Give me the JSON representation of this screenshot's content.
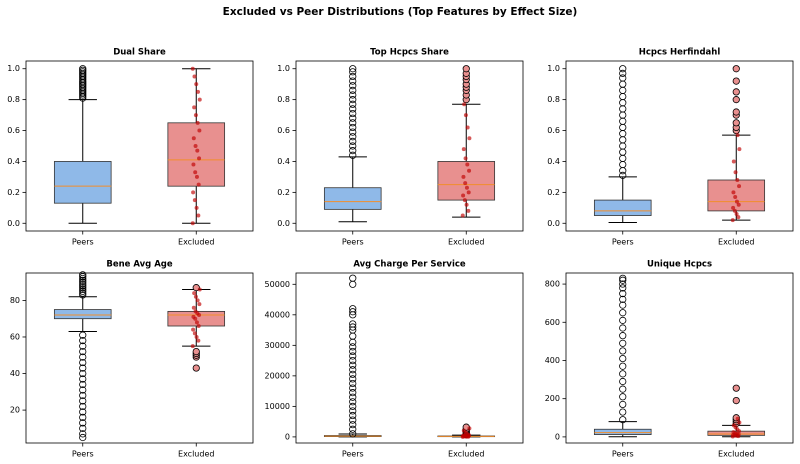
{
  "title": "Excluded vs Peer Distributions (Top Features by Effect Size)",
  "chart_data": [
    {
      "type": "box",
      "title": "Dual Share",
      "ylim": [
        -0.05,
        1.05
      ],
      "yticks": [
        {
          "value": 0,
          "label": "0.0"
        },
        {
          "value": 0.2,
          "label": "0.2"
        },
        {
          "value": 0.4,
          "label": "0.4"
        },
        {
          "value": 0.6,
          "label": "0.6"
        },
        {
          "value": 0.8,
          "label": "0.8"
        },
        {
          "value": 1,
          "label": "1.0"
        }
      ],
      "median_color": "#f28e2b",
      "boxes": [
        {
          "name": "Peers",
          "color": "#8fb9e8",
          "whislo": 0,
          "q1": 0.13,
          "med": 0.24,
          "q3": 0.4,
          "whishi": 0.8,
          "fliers": [
            0.81,
            0.82,
            0.83,
            0.84,
            0.85,
            0.86,
            0.87,
            0.88,
            0.89,
            0.9,
            0.91,
            0.92,
            0.93,
            0.94,
            0.95,
            0.96,
            0.97,
            0.98,
            0.99,
            1.0
          ]
        },
        {
          "name": "Excluded",
          "color": "#e8908f",
          "whislo": 0,
          "q1": 0.24,
          "med": 0.41,
          "q3": 0.65,
          "whishi": 1.0,
          "fliers": [],
          "points": [
            0.0,
            0.05,
            0.1,
            0.15,
            0.2,
            0.25,
            0.3,
            0.33,
            0.38,
            0.42,
            0.47,
            0.5,
            0.55,
            0.6,
            0.65,
            0.7,
            0.75,
            0.8,
            0.85,
            0.9,
            0.95,
            1.0
          ],
          "points_color": "#c00000"
        }
      ]
    },
    {
      "type": "box",
      "title": "Top Hcpcs Share",
      "ylim": [
        -0.05,
        1.05
      ],
      "yticks": [
        {
          "value": 0,
          "label": "0.0"
        },
        {
          "value": 0.2,
          "label": "0.2"
        },
        {
          "value": 0.4,
          "label": "0.4"
        },
        {
          "value": 0.6,
          "label": "0.6"
        },
        {
          "value": 0.8,
          "label": "0.8"
        },
        {
          "value": 1,
          "label": "1.0"
        }
      ],
      "median_color": "#f28e2b",
      "boxes": [
        {
          "name": "Peers",
          "color": "#8fb9e8",
          "whislo": 0.01,
          "q1": 0.09,
          "med": 0.14,
          "q3": 0.23,
          "whishi": 0.43,
          "fliers": [
            0.44,
            0.47,
            0.5,
            0.53,
            0.56,
            0.59,
            0.62,
            0.65,
            0.68,
            0.71,
            0.74,
            0.77,
            0.8,
            0.83,
            0.86,
            0.89,
            0.92,
            0.95,
            0.98,
            1.0
          ]
        },
        {
          "name": "Excluded",
          "color": "#e8908f",
          "whislo": 0.04,
          "q1": 0.15,
          "med": 0.25,
          "q3": 0.4,
          "whishi": 0.77,
          "fliers": [
            0.8,
            0.83,
            0.86,
            0.88,
            0.9,
            0.93,
            0.95,
            0.97,
            1.0
          ],
          "points": [
            0.05,
            0.08,
            0.12,
            0.15,
            0.18,
            0.2,
            0.23,
            0.26,
            0.3,
            0.34,
            0.38,
            0.42,
            0.48,
            0.55,
            0.62,
            0.7,
            0.77
          ],
          "points_color": "#c00000"
        }
      ]
    },
    {
      "type": "box",
      "title": "Hcpcs Herfindahl",
      "ylim": [
        -0.05,
        1.05
      ],
      "yticks": [
        {
          "value": 0,
          "label": "0.0"
        },
        {
          "value": 0.2,
          "label": "0.2"
        },
        {
          "value": 0.4,
          "label": "0.4"
        },
        {
          "value": 0.6,
          "label": "0.6"
        },
        {
          "value": 0.8,
          "label": "0.8"
        },
        {
          "value": 1,
          "label": "1.0"
        }
      ],
      "median_color": "#f28e2b",
      "boxes": [
        {
          "name": "Peers",
          "color": "#8fb9e8",
          "whislo": 0.005,
          "q1": 0.05,
          "med": 0.08,
          "q3": 0.15,
          "whishi": 0.3,
          "fliers": [
            0.31,
            0.34,
            0.38,
            0.42,
            0.46,
            0.5,
            0.54,
            0.58,
            0.62,
            0.66,
            0.7,
            0.74,
            0.78,
            0.82,
            0.86,
            0.9,
            0.94,
            0.97,
            1.0
          ]
        },
        {
          "name": "Excluded",
          "color": "#e8908f",
          "whislo": 0.02,
          "q1": 0.08,
          "med": 0.14,
          "q3": 0.28,
          "whishi": 0.57,
          "fliers": [
            0.6,
            0.62,
            0.65,
            0.7,
            0.72,
            0.8,
            0.85,
            0.92,
            1.0
          ],
          "points": [
            0.02,
            0.04,
            0.06,
            0.08,
            0.1,
            0.12,
            0.14,
            0.17,
            0.2,
            0.24,
            0.28,
            0.33,
            0.4,
            0.48,
            0.57
          ],
          "points_color": "#c00000"
        }
      ]
    },
    {
      "type": "box",
      "title": "Bene Avg Age",
      "ylim": [
        2,
        95
      ],
      "yticks": [
        20,
        40,
        60,
        80
      ],
      "median_color": "#f28e2b",
      "boxes": [
        {
          "name": "Peers",
          "color": "#8fb9e8",
          "whislo": 63,
          "q1": 70,
          "med": 72,
          "q3": 75,
          "whishi": 82,
          "fliers": [
            83,
            84,
            85,
            86,
            87,
            88,
            89,
            90,
            91,
            92,
            93,
            94,
            61,
            58,
            55,
            52,
            49,
            46,
            43,
            40,
            37,
            34,
            31,
            28,
            25,
            22,
            19,
            16,
            13,
            10,
            7,
            5
          ]
        },
        {
          "name": "Excluded",
          "color": "#e8908f",
          "whislo": 55,
          "q1": 66,
          "med": 72,
          "q3": 74,
          "whishi": 86,
          "fliers": [
            43,
            49,
            50,
            51,
            52,
            87
          ],
          "points": [
            55,
            58,
            60,
            62,
            64,
            66,
            68,
            70,
            71,
            72,
            73,
            74,
            76,
            78,
            80,
            82,
            84,
            86
          ],
          "points_color": "#c00000"
        }
      ]
    },
    {
      "type": "box",
      "title": "Avg Charge Per Service",
      "ylim": [
        -2000,
        53700
      ],
      "yticks": [
        0,
        10000,
        20000,
        30000,
        40000,
        50000
      ],
      "median_color": "#f28e2b",
      "boxes": [
        {
          "name": "Peers",
          "color": "#8fb9e8",
          "whislo": 0,
          "q1": 100,
          "med": 250,
          "q3": 450,
          "whishi": 950,
          "fliers": [
            1000,
            2500,
            4000,
            5500,
            7000,
            8500,
            10000,
            11500,
            13000,
            14500,
            16000,
            17500,
            19000,
            20500,
            22000,
            23500,
            25000,
            26500,
            28000,
            29500,
            31000,
            33000,
            35000,
            36000,
            37000,
            40000,
            41000,
            42000,
            50000,
            52000
          ]
        },
        {
          "name": "Excluded",
          "color": "#e8908f",
          "whislo": 0,
          "q1": 80,
          "med": 180,
          "q3": 300,
          "whishi": 600,
          "fliers": [
            700,
            1000,
            1400,
            1800,
            2200,
            2600,
            3200
          ],
          "points": [
            20,
            60,
            100,
            150,
            200,
            250,
            300,
            400,
            500,
            600,
            900,
            1500,
            2100,
            2800
          ],
          "points_color": "#c00000"
        }
      ]
    },
    {
      "type": "box",
      "title": "Unique Hcpcs",
      "ylim": [
        -32,
        858
      ],
      "yticks": [
        0,
        200,
        400,
        600,
        800
      ],
      "median_color": "#f28e2b",
      "boxes": [
        {
          "name": "Peers",
          "color": "#8fb9e8",
          "whislo": 1,
          "q1": 12,
          "med": 22,
          "q3": 40,
          "whishi": 80,
          "fliers": [
            90,
            130,
            170,
            210,
            250,
            290,
            330,
            370,
            410,
            450,
            490,
            530,
            570,
            610,
            650,
            690,
            720,
            750,
            780,
            800,
            820,
            830
          ]
        },
        {
          "name": "Excluded",
          "color": "#e8908f",
          "whislo": 1,
          "q1": 8,
          "med": 15,
          "q3": 30,
          "whishi": 60,
          "fliers": [
            70,
            80,
            90,
            100,
            190,
            255
          ],
          "points": [
            2,
            4,
            6,
            8,
            10,
            13,
            16,
            20,
            25,
            30,
            40,
            50,
            60,
            75,
            95
          ],
          "points_color": "#c00000"
        }
      ]
    }
  ]
}
